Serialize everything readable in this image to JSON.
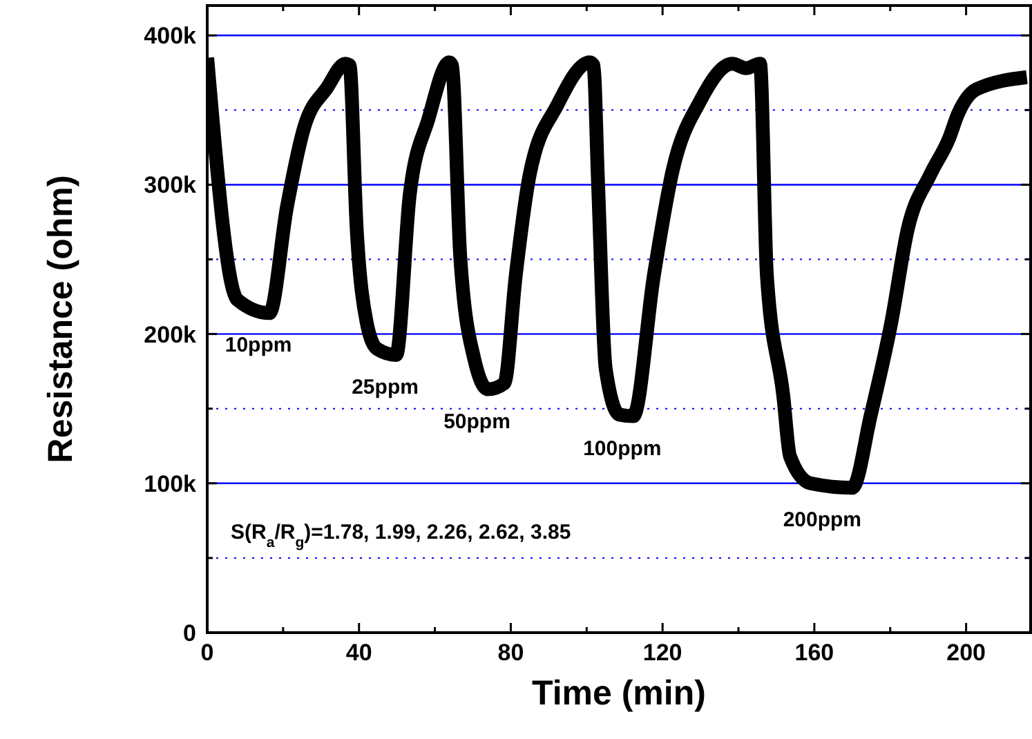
{
  "chart_data": {
    "type": "line",
    "xlabel": "Time (min)",
    "ylabel": "Resistance (ohm)",
    "xlim": [
      0,
      217
    ],
    "ylim": [
      0,
      420000
    ],
    "xticks": [
      0,
      {
        "value": 20,
        "label": null
      },
      40,
      {
        "value": 60,
        "label": null
      },
      80,
      {
        "value": 100,
        "label": null
      },
      120,
      {
        "value": 140,
        "label": null
      },
      160,
      {
        "value": 180,
        "label": null
      },
      200
    ],
    "yticks": [
      0,
      {
        "value": 50000,
        "label": null
      },
      {
        "value": 100000,
        "label": "100k"
      },
      {
        "value": 150000,
        "label": null
      },
      {
        "value": 200000,
        "label": "200k"
      },
      {
        "value": 250000,
        "label": null
      },
      {
        "value": 300000,
        "label": "300k"
      },
      {
        "value": 350000,
        "label": null
      },
      {
        "value": 400000,
        "label": "400k"
      }
    ],
    "grid": "y",
    "marker": "none",
    "line_style": "solid",
    "series": [
      {
        "color": "#000000",
        "x": [
          0,
          7.9,
          16.4,
          21,
          25.5,
          31.6,
          36.4,
          37.5,
          39.4,
          42,
          44.8,
          49.8,
          53.4,
          58.3,
          63.8,
          64.5,
          66.7,
          70.4,
          74,
          78.3,
          81.3,
          85,
          92.2,
          100.8,
          101.8,
          103,
          105,
          108.6,
          112.3,
          117.7,
          122.7,
          129.9,
          138.4,
          142,
          145.7,
          147.5,
          151.8,
          153.6,
          159,
          170,
          174.9,
          180.3,
          184.6,
          190.6,
          195.5,
          197.8,
          202.8,
          216
        ],
        "values": [
          385000,
          223000,
          214000,
          285000,
          338000,
          365000,
          381000,
          380000,
          270000,
          208000,
          190000,
          186000,
          294000,
          344000,
          382000,
          380000,
          251000,
          183000,
          163000,
          167000,
          239000,
          307000,
          353000,
          382000,
          380000,
          301000,
          177000,
          146000,
          145000,
          239000,
          310000,
          356000,
          381000,
          378000,
          381000,
          239000,
          159000,
          118000,
          100000,
          97000,
          146000,
          208000,
          270000,
          307000,
          331000,
          347000,
          364000,
          372000
        ]
      }
    ],
    "annotations": [
      {
        "text": "10ppm",
        "x": 16.4,
        "y": 214000
      },
      {
        "text": "25ppm",
        "x": 49.8,
        "y": 186000
      },
      {
        "text": "50ppm",
        "x": 74,
        "y": 163000
      },
      {
        "text": "100ppm",
        "x": 112.3,
        "y": 145000
      },
      {
        "text": "200ppm",
        "x": 165,
        "y": 97000
      },
      "S(R$_{a}$/R$_{g}$)=1.78, 1.99, 2.26, 2.62, 3.85"
    ]
  }
}
